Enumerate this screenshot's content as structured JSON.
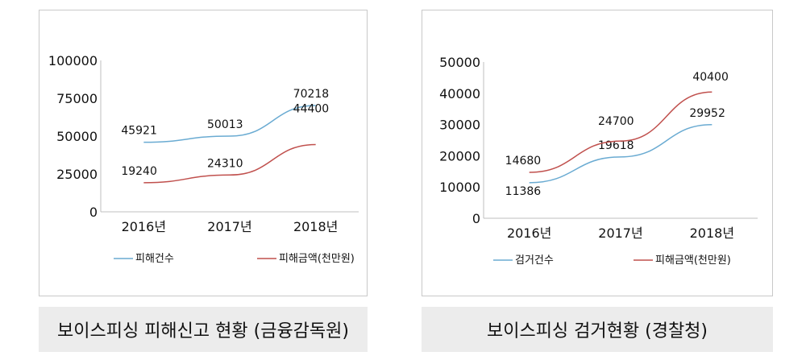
{
  "panels": [
    {
      "caption": "보이스피싱 피해신고 현황 (금융감독원)",
      "chart_data": {
        "type": "line",
        "categories": [
          "2016년",
          "2017년",
          "2018년"
        ],
        "ylim": [
          0,
          100000
        ],
        "yticks": [
          "0",
          "25000",
          "50000",
          "75000",
          "100000"
        ],
        "yticks_values": [
          0,
          25000,
          50000,
          75000,
          100000
        ],
        "series": [
          {
            "name": "피해건수",
            "values": [
              45921,
              50013,
              70218
            ],
            "labels": [
              "45921",
              "50013",
              "70218"
            ],
            "color": "#6aabd2"
          },
          {
            "name": "피해금액(천만원)",
            "values": [
              19240,
              24310,
              44400
            ],
            "labels": [
              "19240",
              "24310",
              "44400"
            ],
            "color": "#c0504d"
          }
        ],
        "legend_position": "bottom"
      }
    },
    {
      "caption": "보이스피싱 검거현황 (경찰청)",
      "chart_data": {
        "type": "line",
        "categories": [
          "2016년",
          "2017년",
          "2018년"
        ],
        "ylim": [
          0,
          50000
        ],
        "yticks": [
          "0",
          "10000",
          "20000",
          "30000",
          "40000",
          "50000"
        ],
        "yticks_values": [
          0,
          10000,
          20000,
          30000,
          40000,
          50000
        ],
        "series": [
          {
            "name": "검거건수",
            "values": [
              11386,
              19618,
              29952
            ],
            "labels": [
              "11386",
              "19618",
              "29952"
            ],
            "color": "#6aabd2"
          },
          {
            "name": "피해금액(천만원)",
            "values": [
              14680,
              24700,
              40400
            ],
            "labels": [
              "14680",
              "24700",
              "40400"
            ],
            "color": "#c0504d"
          }
        ],
        "legend_position": "bottom"
      }
    }
  ]
}
